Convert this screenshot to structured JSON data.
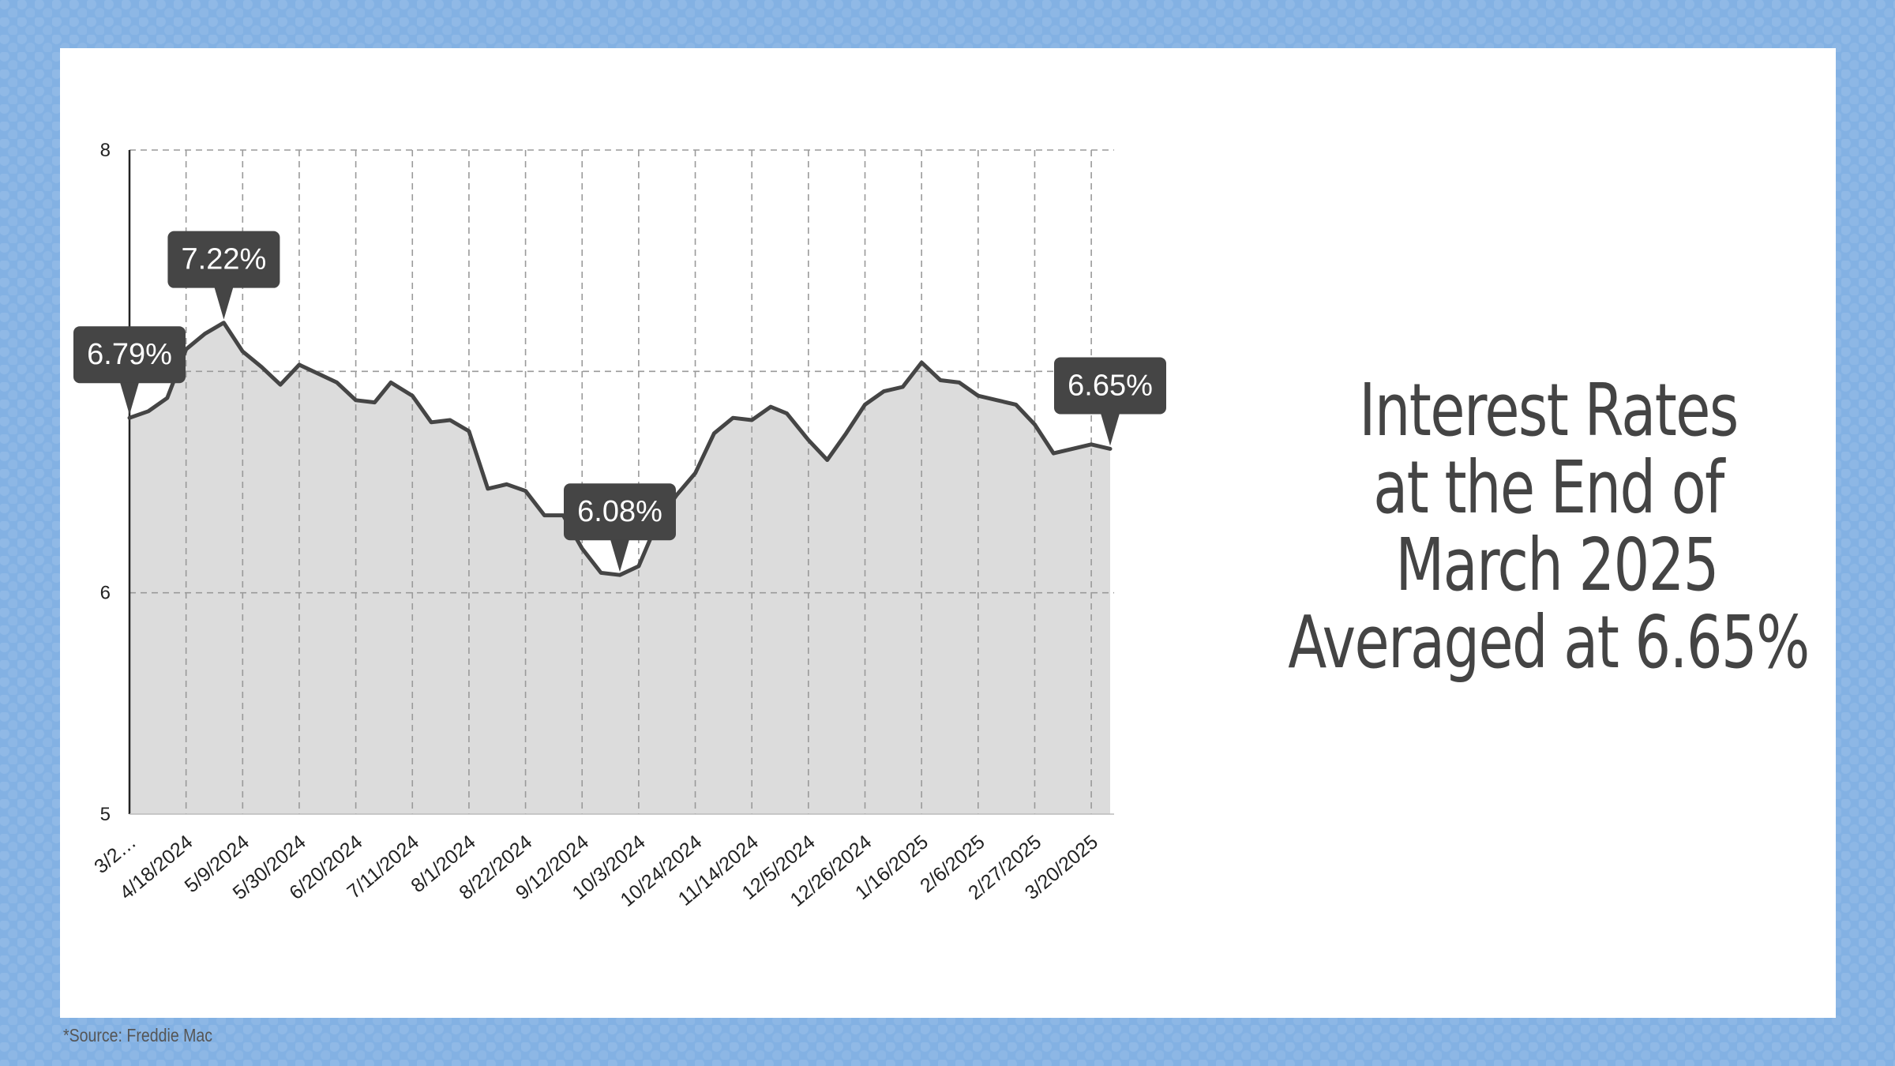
{
  "headline": {
    "line1": "Interest Rates",
    "line2": "at the End of",
    "line3": " March 2025",
    "line4": "Averaged at 6.65%"
  },
  "source": "*Source: Freddie Mac",
  "colors": {
    "line": "#454545",
    "area": "#dcdcdc",
    "grid": "#9a9a9a",
    "callout": "#454545",
    "callout_text": "#ffffff",
    "frame": "#83b1e3"
  },
  "chart_data": {
    "type": "area",
    "title": "",
    "xlabel": "",
    "ylabel": "",
    "ylim": [
      5,
      8
    ],
    "yticks": [
      5,
      6,
      8
    ],
    "grid": true,
    "x_tick_labels": [
      "3/2…",
      "4/18/2024",
      "5/9/2024",
      "5/30/2024",
      "6/20/2024",
      "7/11/2024",
      "8/1/2024",
      "8/22/2024",
      "9/12/2024",
      "10/3/2024",
      "10/24/2024",
      "11/14/2024",
      "12/5/2024",
      "12/26/2024",
      "1/16/2025",
      "2/6/2025",
      "2/27/2025",
      "3/20/2025"
    ],
    "x": [
      "3/28/2024",
      "4/4/2024",
      "4/11/2024",
      "4/18/2024",
      "4/25/2024",
      "5/2/2024",
      "5/9/2024",
      "5/16/2024",
      "5/23/2024",
      "5/30/2024",
      "6/6/2024",
      "6/13/2024",
      "6/20/2024",
      "6/27/2024",
      "7/3/2024",
      "7/11/2024",
      "7/18/2024",
      "7/25/2024",
      "8/1/2024",
      "8/8/2024",
      "8/15/2024",
      "8/22/2024",
      "8/29/2024",
      "9/5/2024",
      "9/12/2024",
      "9/19/2024",
      "9/26/2024",
      "10/3/2024",
      "10/10/2024",
      "10/17/2024",
      "10/24/2024",
      "10/31/2024",
      "11/7/2024",
      "11/14/2024",
      "11/21/2024",
      "11/27/2024",
      "12/5/2024",
      "12/12/2024",
      "12/19/2024",
      "12/26/2024",
      "1/2/2025",
      "1/9/2025",
      "1/16/2025",
      "1/23/2025",
      "1/30/2025",
      "2/6/2025",
      "2/13/2025",
      "2/20/2025",
      "2/27/2025",
      "3/6/2025",
      "3/13/2025",
      "3/20/2025",
      "3/27/2025"
    ],
    "values": [
      6.79,
      6.82,
      6.88,
      7.1,
      7.17,
      7.22,
      7.09,
      7.02,
      6.94,
      7.03,
      6.99,
      6.95,
      6.87,
      6.86,
      6.95,
      6.89,
      6.77,
      6.78,
      6.73,
      6.47,
      6.49,
      6.46,
      6.35,
      6.35,
      6.2,
      6.09,
      6.08,
      6.12,
      6.32,
      6.44,
      6.54,
      6.72,
      6.79,
      6.78,
      6.84,
      6.81,
      6.69,
      6.6,
      6.72,
      6.85,
      6.91,
      6.93,
      7.04,
      6.96,
      6.95,
      6.89,
      6.87,
      6.85,
      6.76,
      6.63,
      6.65,
      6.67,
      6.65
    ],
    "annotations": [
      {
        "label": "6.79%",
        "x": "3/28/2024",
        "y": 6.79
      },
      {
        "label": "7.22%",
        "x": "5/2/2024",
        "y": 7.22
      },
      {
        "label": "6.08%",
        "x": "9/26/2024",
        "y": 6.08
      },
      {
        "label": "6.65%",
        "x": "3/27/2025",
        "y": 6.65
      }
    ]
  }
}
